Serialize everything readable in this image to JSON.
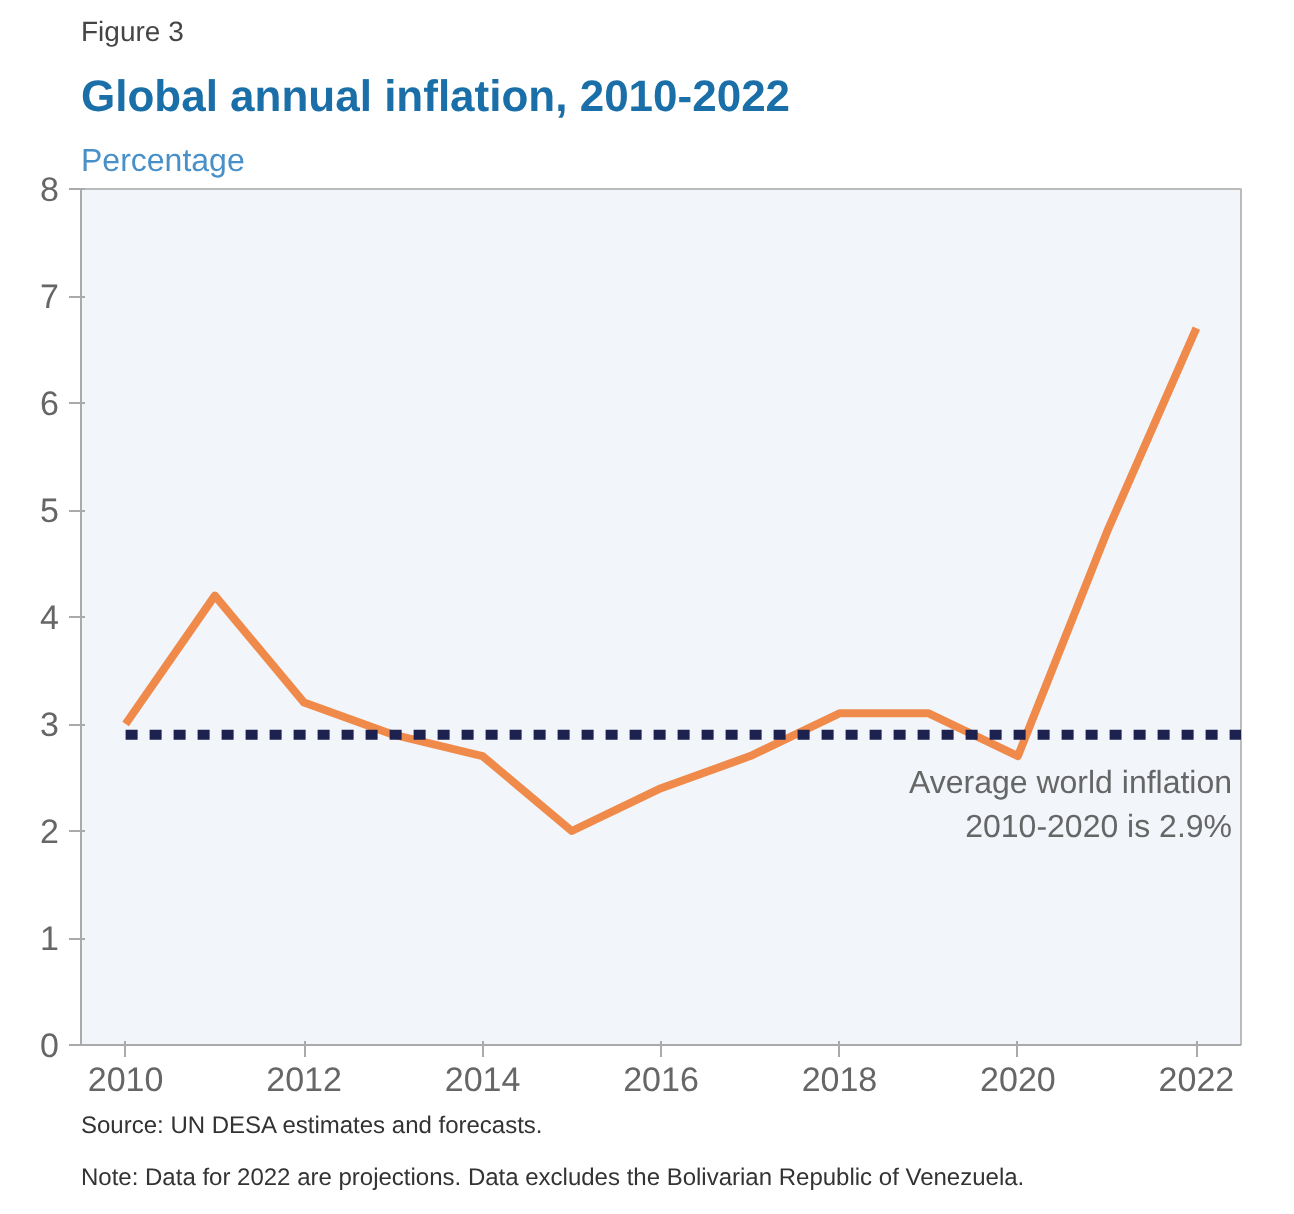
{
  "chart_data": {
    "type": "line",
    "title": "Global annual inflation, 2010-2022",
    "subtitle": "Figure 3",
    "ylabel": "Percentage",
    "categories": [
      "2010",
      null,
      "2012",
      null,
      "2014",
      null,
      "2016",
      null,
      "2018",
      null,
      "2020",
      null,
      "2022"
    ],
    "series": [
      {
        "color": "#f08a4b",
        "values": [
          3.0,
          4.2,
          3.2,
          2.9,
          2.7,
          2.0,
          2.4,
          2.7,
          3.1,
          3.1,
          2.7,
          4.8,
          6.7
        ]
      }
    ],
    "ylim": [
      0,
      8
    ],
    "yticks": [
      0,
      1,
      2,
      3,
      4,
      5,
      6,
      7,
      8
    ],
    "grid": false,
    "marker": "none",
    "line_style": "solid",
    "ref_lines": [
      {
        "axis": "y",
        "value": 2.9,
        "label": "Average world inflation\n2010-2020 is 2.9%",
        "color": "#1c2150",
        "line_style": "dashed"
      }
    ],
    "annotations": [
      "Source: UN DESA estimates and forecasts.",
      "Note: Data for 2022 are projections. Data excludes the Bolivarian Republic of Venezuela."
    ]
  }
}
